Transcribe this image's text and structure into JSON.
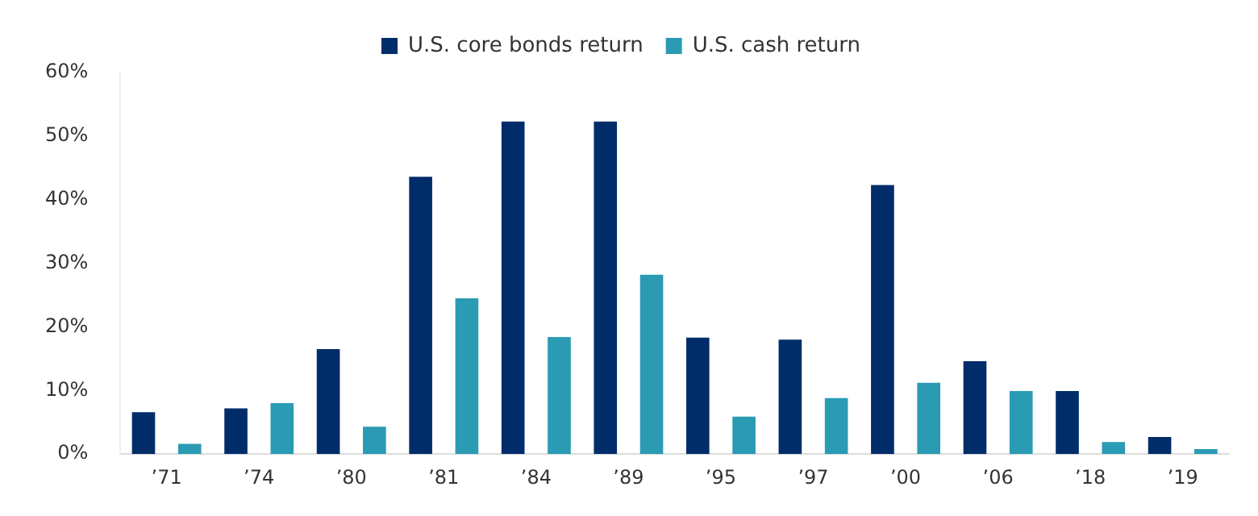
{
  "chart_data": {
    "type": "bar",
    "categories": [
      "’71",
      "’74",
      "’80",
      "’81",
      "’84",
      "’89",
      "’95",
      "’97",
      "’00",
      "’06",
      "’18",
      "’19"
    ],
    "series": [
      {
        "name": "U.S. core bonds return",
        "color": "#002d6a",
        "values": [
          6.6,
          7.2,
          16.5,
          43.6,
          52.3,
          52.3,
          18.3,
          18,
          42.3,
          14.6,
          9.9,
          2.7
        ]
      },
      {
        "name": "U.S. cash return",
        "color": "#2b9bb3",
        "values": [
          1.6,
          8,
          4.3,
          24.5,
          18.4,
          28.2,
          5.9,
          8.8,
          11.2,
          9.9,
          1.9,
          0.8
        ]
      }
    ],
    "ylim": [
      0,
      60
    ],
    "yticks": [
      {
        "value": 0,
        "label": "0%"
      },
      {
        "value": 10,
        "label": "10%"
      },
      {
        "value": 20,
        "label": "20%"
      },
      {
        "value": 30,
        "label": "30%"
      },
      {
        "value": 40,
        "label": "40%"
      },
      {
        "value": 50,
        "label": "50%"
      },
      {
        "value": 60,
        "label": "60%"
      }
    ],
    "grid": false,
    "legend": "top"
  }
}
